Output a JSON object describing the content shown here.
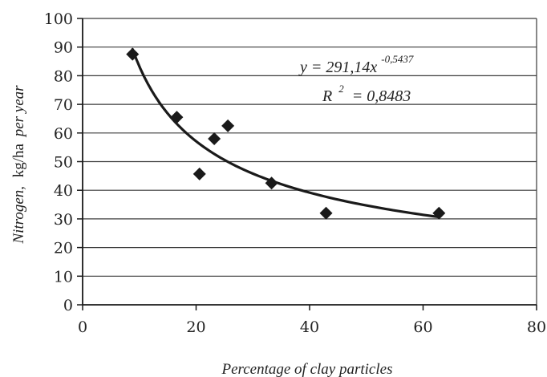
{
  "chart_data": {
    "type": "scatter",
    "xlabel": "Percentage of clay particles",
    "ylabel": {
      "part1": "Nitrogen,",
      "part2": "kg/ha",
      "part3": "per year"
    },
    "xlim": [
      0,
      80
    ],
    "ylim": [
      0,
      100
    ],
    "x_ticks": [
      0,
      20,
      40,
      60,
      80
    ],
    "y_ticks": [
      0,
      10,
      20,
      30,
      40,
      50,
      60,
      70,
      80,
      90,
      100
    ],
    "grid": "horizontal",
    "points": [
      {
        "x": 8.8,
        "y": 87.5
      },
      {
        "x": 16.6,
        "y": 65.5
      },
      {
        "x": 20.6,
        "y": 45.7
      },
      {
        "x": 23.2,
        "y": 58.0
      },
      {
        "x": 25.6,
        "y": 62.5
      },
      {
        "x": 33.3,
        "y": 42.5
      },
      {
        "x": 42.9,
        "y": 32.0
      },
      {
        "x": 62.8,
        "y": 32.0
      }
    ],
    "trendline": {
      "type": "power",
      "coefficient": 291.14,
      "exponent": -0.5437,
      "x_range": [
        8.8,
        62.8
      ]
    },
    "equation": {
      "lhs": "y = 291,14x",
      "exponent": "-0,5437",
      "r2_lhs": "R",
      "r2_power": "2",
      "r2_rhs": " = 0,8483"
    },
    "colors": {
      "marker": "#1a1a1a",
      "line": "#1a1a1a",
      "grid": "#3a3a3a",
      "axis": "#1a1a1a"
    }
  }
}
